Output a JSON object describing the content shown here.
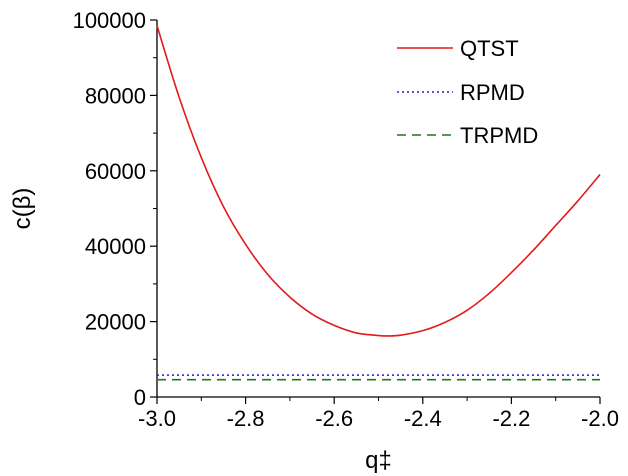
{
  "chart_data": {
    "type": "line",
    "xlabel": "q‡",
    "ylabel": "c(β)",
    "xlim": [
      -3.0,
      -2.0
    ],
    "ylim": [
      0,
      100000
    ],
    "x_ticks": [
      -3.0,
      -2.8,
      -2.6,
      -2.4,
      -2.2,
      -2.0
    ],
    "x_tick_labels": [
      "-3.0",
      "-2.8",
      "-2.6",
      "-2.4",
      "-2.2",
      "-2.0"
    ],
    "y_ticks": [
      0,
      20000,
      40000,
      60000,
      80000,
      100000
    ],
    "y_tick_labels": [
      "0",
      "20000",
      "40000",
      "60000",
      "80000",
      "100000"
    ],
    "grid": false,
    "legend_position": "top-right",
    "series": [
      {
        "name": "QTST",
        "color": "#e31a1c",
        "style": "solid",
        "x": [
          -3.0,
          -2.95,
          -2.9,
          -2.85,
          -2.8,
          -2.75,
          -2.7,
          -2.65,
          -2.6,
          -2.55,
          -2.5,
          -2.48,
          -2.45,
          -2.4,
          -2.35,
          -2.3,
          -2.25,
          -2.2,
          -2.15,
          -2.1,
          -2.05,
          -2.0
        ],
        "y": [
          98500,
          79500,
          63500,
          50500,
          40500,
          32500,
          26500,
          22000,
          19000,
          17000,
          16300,
          16200,
          16400,
          17600,
          19800,
          23000,
          27500,
          33000,
          39000,
          45500,
          52000,
          59000
        ]
      },
      {
        "name": "RPMD",
        "color": "#1f1fd6",
        "style": "dotted",
        "x": [
          -3.0,
          -2.0
        ],
        "y": [
          5800,
          5800
        ]
      },
      {
        "name": "TRPMD",
        "color": "#1a7a1a",
        "style": "dashed",
        "x": [
          -3.0,
          -2.0
        ],
        "y": [
          4600,
          4600
        ]
      }
    ]
  }
}
